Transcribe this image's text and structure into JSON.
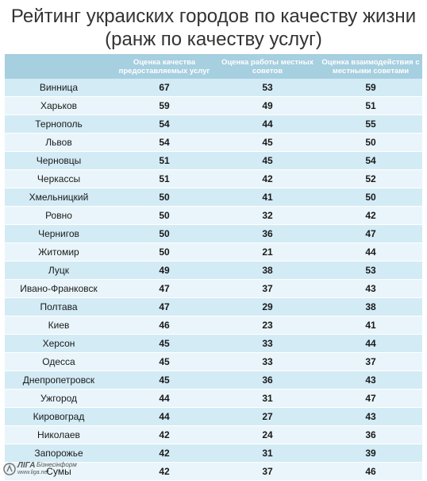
{
  "title_line1": "Рейтинг украиских городов по качеству жизни",
  "title_line2": "(ранж по качеству услуг)",
  "chart_data": {
    "type": "table",
    "columns": [
      "",
      "Оценка качества предоставляемых услуг",
      "Оценка работы местных советов",
      "Оценка взаимодействия с местными советами"
    ],
    "rows": [
      [
        "Винница",
        67,
        53,
        59
      ],
      [
        "Харьков",
        59,
        49,
        51
      ],
      [
        "Тернополь",
        54,
        44,
        55
      ],
      [
        "Львов",
        54,
        45,
        50
      ],
      [
        "Черновцы",
        51,
        45,
        54
      ],
      [
        "Черкассы",
        51,
        42,
        52
      ],
      [
        "Хмельницкий",
        50,
        41,
        50
      ],
      [
        "Ровно",
        50,
        32,
        42
      ],
      [
        "Чернигов",
        50,
        36,
        47
      ],
      [
        "Житомир",
        50,
        21,
        44
      ],
      [
        "Луцк",
        49,
        38,
        53
      ],
      [
        "Ивано-Франковск",
        47,
        37,
        43
      ],
      [
        "Полтава",
        47,
        29,
        38
      ],
      [
        "Киев",
        46,
        23,
        41
      ],
      [
        "Херсон",
        45,
        33,
        44
      ],
      [
        "Одесса",
        45,
        33,
        37
      ],
      [
        "Днепропетровск",
        45,
        36,
        43
      ],
      [
        "Ужгород",
        44,
        31,
        47
      ],
      [
        "Кировоград",
        44,
        27,
        43
      ],
      [
        "Николаев",
        42,
        24,
        36
      ],
      [
        "Запорожье",
        42,
        31,
        39
      ],
      [
        "Сумы",
        42,
        37,
        46
      ]
    ]
  },
  "footer": {
    "brand": "ЛIГА",
    "brand_sub": "Бізнесінформ",
    "url": "www.liga.net"
  },
  "colors": {
    "header_bg": "#a6cfe0",
    "row_odd": "#d3ebf5",
    "row_even": "#e9f5fa"
  }
}
